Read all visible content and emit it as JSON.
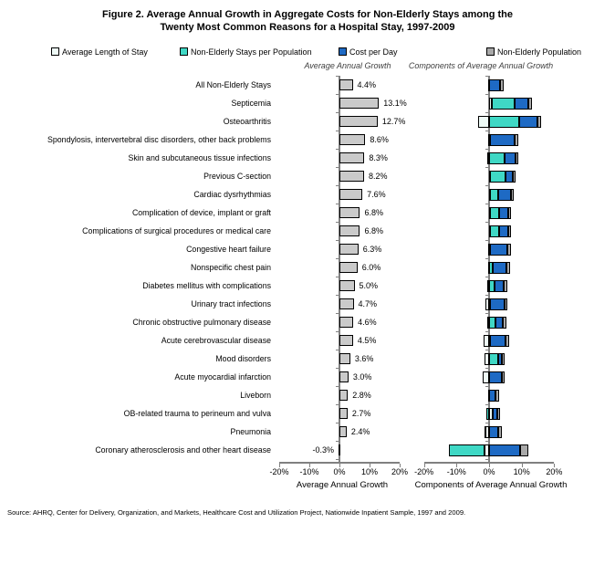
{
  "figure": {
    "title_line1": "Figure 2.  Average Annual Growth in Aggregate Costs for Non-Elderly Stays among the",
    "title_line2": "Twenty Most Common Reasons for a Hospital Stay, 1997-2009",
    "source": "Source: AHRQ, Center for Delivery, Organization, and Markets, Healthcare Cost and Utilization Project, Nationwide Inpatient Sample, 1997 and 2009."
  },
  "legend": {
    "items": [
      {
        "label": "Average Length of Stay",
        "color": "#eefaf6"
      },
      {
        "label": "Non-Elderly Stays per Population",
        "color": "#3fd8c5"
      },
      {
        "label": "Cost per Day",
        "color": "#1e6ac4"
      },
      {
        "label": "Non-Elderly Population",
        "color": "#a9a9a9"
      }
    ]
  },
  "panels": {
    "left": {
      "header": "Average Annual Growth",
      "axis_label": "Average Annual Growth"
    },
    "right": {
      "header": "Components of Average Annual Growth",
      "axis_label": "Components of Average Annual Growth"
    }
  },
  "chart_data": [
    {
      "type": "bar",
      "orientation": "horizontal",
      "title": "Average Annual Growth",
      "xlabel": "Average Annual Growth",
      "xlim": [
        -20,
        20
      ],
      "xticks": [
        "-20%",
        "-10%",
        "0%",
        "10%",
        "20%"
      ],
      "grid": false,
      "bar_color": "#cacaca",
      "axis_color": "#808080",
      "categories": [
        "All Non-Elderly Stays",
        "Septicemia",
        "Osteoarthritis",
        "Spondylosis, intervertebral disc disorders, other back problems",
        "Skin and subcutaneous tissue infections",
        "Previous C-section",
        "Cardiac dysrhythmias",
        "Complication of device, implant or graft",
        "Complications of surgical procedures or medical care",
        "Congestive heart failure",
        "Nonspecific chest pain",
        "Diabetes mellitus with complications",
        "Urinary tract infections",
        "Chronic obstructive pulmonary disease",
        "Acute cerebrovascular disease",
        "Mood disorders",
        "Acute myocardial infarction",
        "Liveborn",
        "OB-related trauma to perineum and vulva",
        "Pneumonia",
        "Coronary atherosclerosis and other heart disease"
      ],
      "values": [
        4.4,
        13.1,
        12.7,
        8.6,
        8.3,
        8.2,
        7.6,
        6.8,
        6.8,
        6.3,
        6.0,
        5.0,
        4.7,
        4.6,
        4.5,
        3.6,
        3.0,
        2.8,
        2.7,
        2.4,
        -0.3
      ],
      "value_labels": [
        "4.4%",
        "13.1%",
        "12.7%",
        "8.6%",
        "8.3%",
        "8.2%",
        "7.6%",
        "6.8%",
        "6.8%",
        "6.3%",
        "6.0%",
        "5.0%",
        "4.7%",
        "4.6%",
        "4.5%",
        "3.6%",
        "3.0%",
        "2.8%",
        "2.7%",
        "2.4%",
        "-0.3%"
      ]
    },
    {
      "type": "bar",
      "stacked": true,
      "orientation": "horizontal",
      "title": "Components of Average Annual Growth",
      "xlabel": "Components of Average Annual Growth",
      "xlim": [
        -20,
        20
      ],
      "xticks": [
        "-20%",
        "-10%",
        "0%",
        "10%",
        "20%"
      ],
      "grid": false,
      "axis_color": "#808080",
      "note": "Component values estimated from bar segment lengths; segments of each row sum to the Average Annual Growth total",
      "categories": [
        "All Non-Elderly Stays",
        "Septicemia",
        "Osteoarthritis",
        "Spondylosis, intervertebral disc disorders, other back problems",
        "Skin and subcutaneous tissue infections",
        "Previous C-section",
        "Cardiac dysrhythmias",
        "Complication of device, implant or graft",
        "Complications of surgical procedures or medical care",
        "Congestive heart failure",
        "Nonspecific chest pain",
        "Diabetes mellitus with complications",
        "Urinary tract infections",
        "Chronic obstructive pulmonary disease",
        "Acute cerebrovascular disease",
        "Mood disorders",
        "Acute myocardial infarction",
        "Liveborn",
        "OB-related trauma to perineum and vulva",
        "Pneumonia",
        "Coronary atherosclerosis and other heart disease"
      ],
      "series": [
        {
          "name": "Average Length of Stay",
          "color": "#eefaf6",
          "values": [
            -0.2,
            0.9,
            -3.3,
            -0.4,
            -0.7,
            0.2,
            0.2,
            0.3,
            0.2,
            -0.3,
            -0.4,
            -0.5,
            -1.0,
            -0.6,
            -1.6,
            -1.3,
            -1.9,
            -0.3,
            1.0,
            -1.3,
            -1.4
          ]
        },
        {
          "name": "Non-Elderly Stays per Population",
          "color": "#3fd8c5",
          "values": [
            0.1,
            6.9,
            9.3,
            0.3,
            4.9,
            4.8,
            2.6,
            2.7,
            3.0,
            0.2,
            1.2,
            1.8,
            0.2,
            2.0,
            0.2,
            2.7,
            0.0,
            0.1,
            -0.8,
            -0.1,
            -10.9
          ]
        },
        {
          "name": "Cost per Day",
          "color": "#1e6ac4",
          "values": [
            3.3,
            4.3,
            5.5,
            7.6,
            3.1,
            2.2,
            3.8,
            2.8,
            2.6,
            5.4,
            4.2,
            2.7,
            4.5,
            2.2,
            4.9,
            1.2,
            3.9,
            1.8,
            1.5,
            2.8,
            9.5
          ]
        },
        {
          "name": "Non-Elderly Population",
          "color": "#a9a9a9",
          "values": [
            1.2,
            1.0,
            1.2,
            1.1,
            1.0,
            1.0,
            1.0,
            1.0,
            1.0,
            1.0,
            1.0,
            1.0,
            1.0,
            1.0,
            1.0,
            1.0,
            1.0,
            1.2,
            1.0,
            1.0,
            2.5
          ]
        }
      ]
    }
  ]
}
